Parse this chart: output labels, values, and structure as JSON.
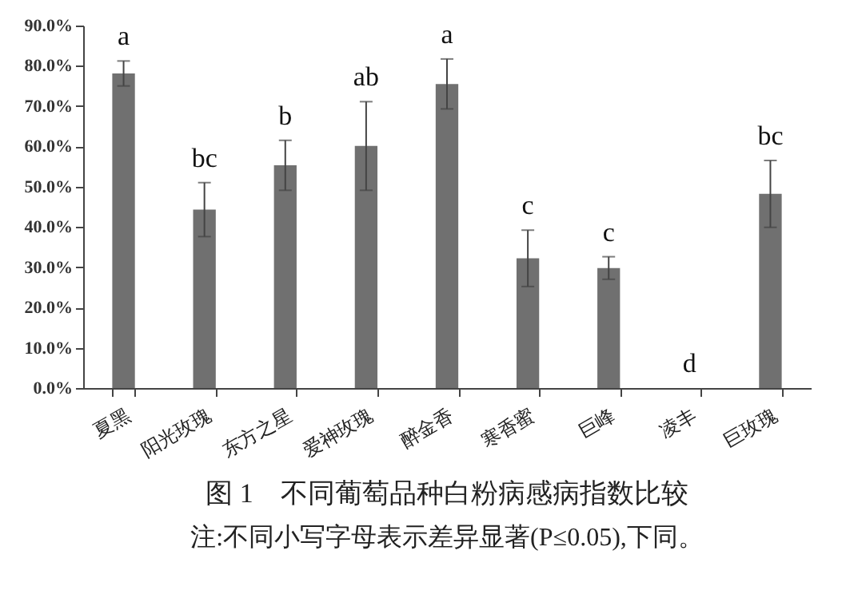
{
  "chart_data": {
    "type": "bar",
    "title": "图 1　不同葡萄品种白粉病感病指数比较",
    "categories": [
      "夏黑",
      "阳光玫瑰",
      "东方之星",
      "爱神玫瑰",
      "醉金香",
      "寒香蜜",
      "巨峰",
      "凌丰",
      "巨玫瑰"
    ],
    "values": [
      78.1,
      44.3,
      55.3,
      60.1,
      75.5,
      32.2,
      29.8,
      0,
      48.2
    ],
    "errors": [
      3.1,
      6.7,
      6.2,
      11,
      6.2,
      7,
      2.8,
      null,
      8.3
    ],
    "color": "#707070",
    "ylim": [
      0,
      90
    ],
    "yticks": [
      {
        "value": 0,
        "label": "0.0%"
      },
      {
        "value": 10,
        "label": "10.0%"
      },
      {
        "value": 20,
        "label": "20.0%"
      },
      {
        "value": 30,
        "label": "30.0%"
      },
      {
        "value": 40,
        "label": "40.0%"
      },
      {
        "value": 50,
        "label": "50.0%"
      },
      {
        "value": 60,
        "label": "60.0%"
      },
      {
        "value": 70,
        "label": "70.0%"
      },
      {
        "value": 80,
        "label": "80.0%"
      },
      {
        "value": 90,
        "label": "90.0%"
      }
    ],
    "annotations": [
      {
        "text": "a",
        "x": "夏黑",
        "y": 81.2
      },
      {
        "text": "bc",
        "x": "阳光玫瑰",
        "y": 51
      },
      {
        "text": "b",
        "x": "东方之星",
        "y": 61.5
      },
      {
        "text": "ab",
        "x": "爱神玫瑰",
        "y": 71.1
      },
      {
        "text": "a",
        "x": "醉金香",
        "y": 81.7
      },
      {
        "text": "c",
        "x": "寒香蜜",
        "y": 39.2
      },
      {
        "text": "c",
        "x": "巨峰",
        "y": 32.6
      },
      {
        "text": "d",
        "x": "凌丰",
        "y": 0
      },
      {
        "text": "bc",
        "x": "巨玫瑰",
        "y": 56.5
      },
      "注:不同小写字母表示差异显著(P≤0.05),下同。"
    ],
    "grid": false
  }
}
